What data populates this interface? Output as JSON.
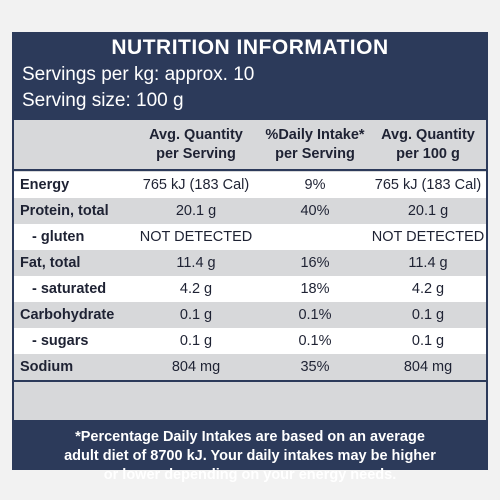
{
  "header": {
    "title": "NUTRITION INFORMATION",
    "servings_per_kg": "Servings per kg: approx. 10",
    "serving_size": "Serving size: 100 g"
  },
  "columns": {
    "col1": [
      "Avg. Quantity",
      "per Serving"
    ],
    "col2": [
      "%Daily Intake*",
      "per Serving"
    ],
    "col3": [
      "Avg. Quantity",
      "per 100 g"
    ]
  },
  "rows": [
    {
      "name": "Energy",
      "sub": false,
      "per_serving": "765 kJ (183 Cal)",
      "daily_intake": "9%",
      "per_100g": "765 kJ (183 Cal)"
    },
    {
      "name": "Protein, total",
      "sub": false,
      "per_serving": "20.1 g",
      "daily_intake": "40%",
      "per_100g": "20.1 g"
    },
    {
      "name": "- gluten",
      "sub": true,
      "per_serving": "NOT DETECTED",
      "daily_intake": "",
      "per_100g": "NOT DETECTED"
    },
    {
      "name": "Fat, total",
      "sub": false,
      "per_serving": "11.4 g",
      "daily_intake": "16%",
      "per_100g": "11.4 g"
    },
    {
      "name": "- saturated",
      "sub": true,
      "per_serving": "4.2 g",
      "daily_intake": "18%",
      "per_100g": "4.2 g"
    },
    {
      "name": "Carbohydrate",
      "sub": false,
      "per_serving": "0.1 g",
      "daily_intake": "0.1%",
      "per_100g": "0.1 g"
    },
    {
      "name": "- sugars",
      "sub": true,
      "per_serving": "0.1 g",
      "daily_intake": "0.1%",
      "per_100g": "0.1 g"
    },
    {
      "name": "Sodium",
      "sub": false,
      "per_serving": "804 mg",
      "daily_intake": "35%",
      "per_100g": "804 mg"
    }
  ],
  "footnote": [
    "*Percentage Daily Intakes are based on an average",
    "adult diet of 8700 kJ. Your daily intakes may be higher",
    "or lower depending on your energy needs."
  ],
  "colors": {
    "panel": "#2c3a5a",
    "row_light": "#ffffff",
    "row_grey": "#d7d8da"
  }
}
